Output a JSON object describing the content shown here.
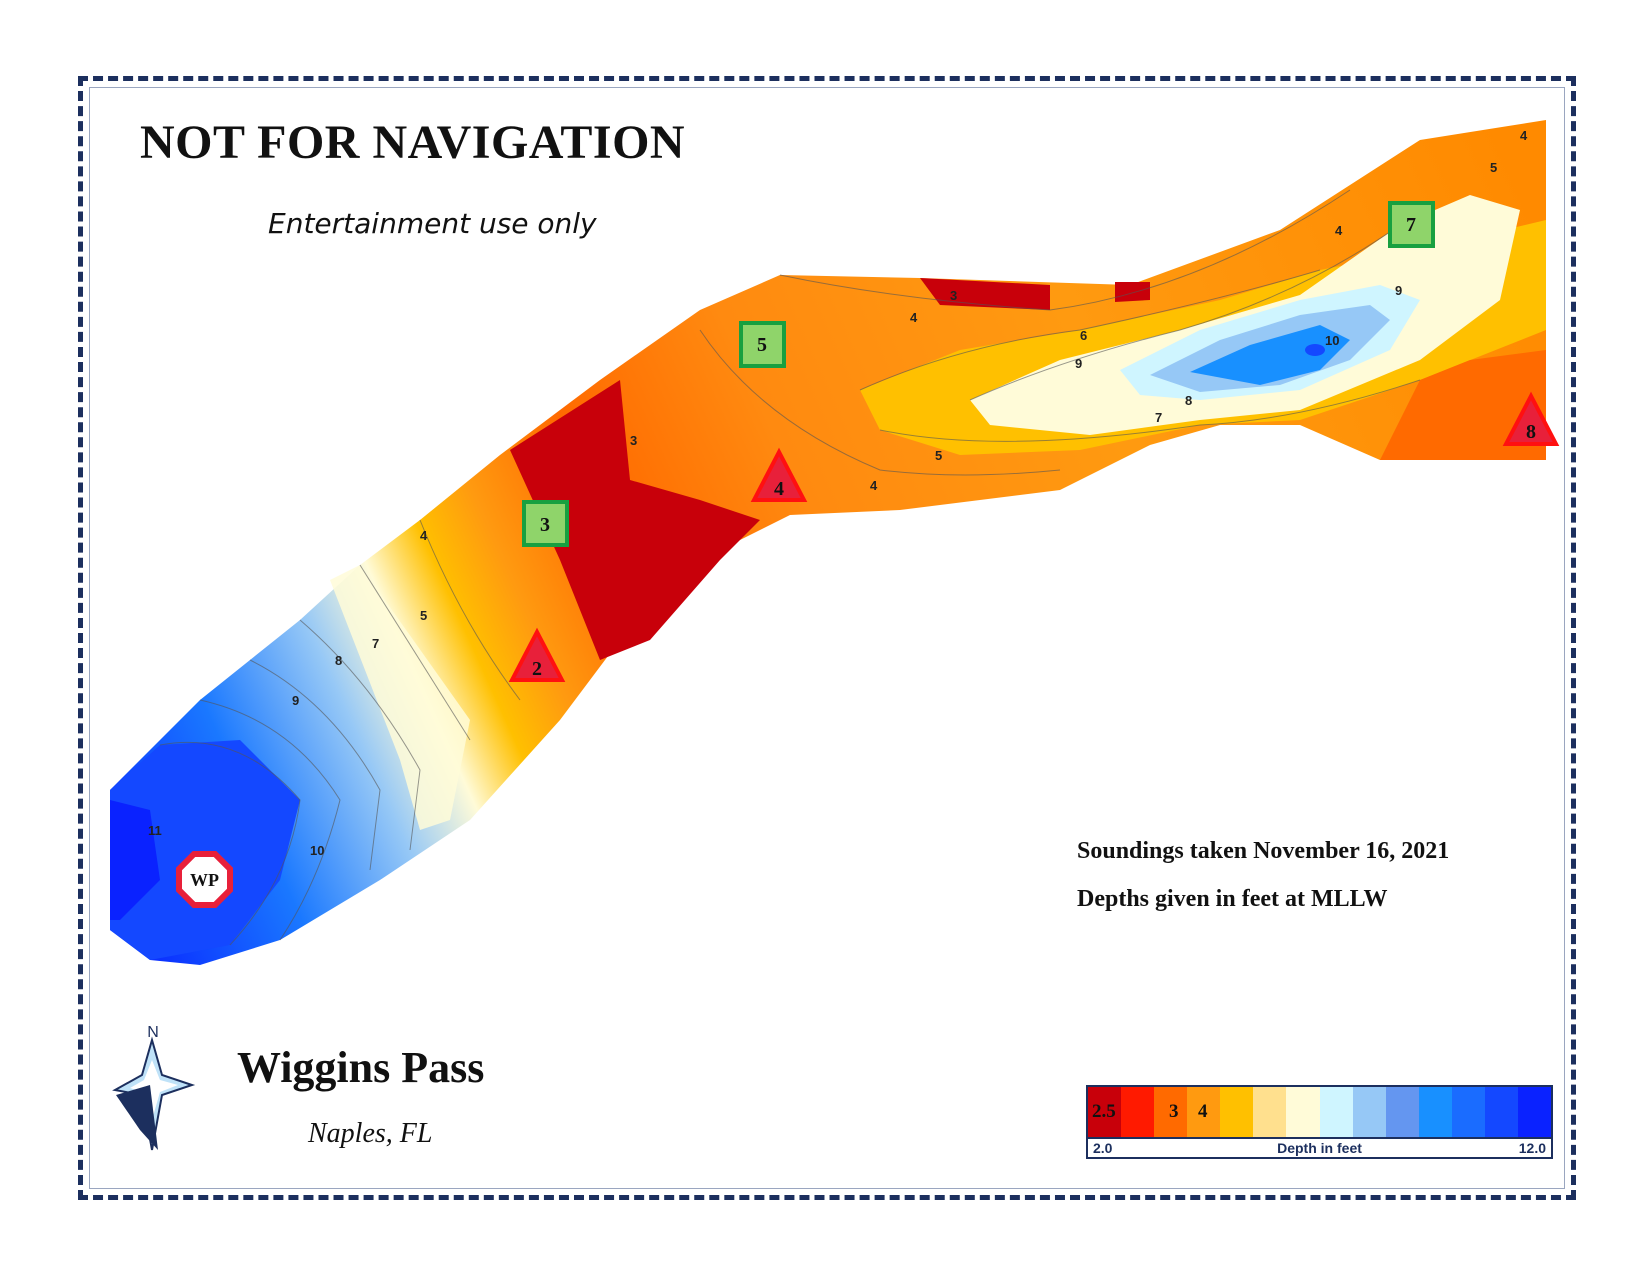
{
  "header": {
    "title": "NOT FOR NAVIGATION",
    "subtitle": "Entertainment use only"
  },
  "notes": {
    "soundings": "Soundings taken November 16, 2021",
    "depths": "Depths given in feet at MLLW"
  },
  "place": {
    "name": "Wiggins Pass",
    "city": "Naples, FL"
  },
  "compass": {
    "north_label": "N",
    "icon": "compass-rose-icon"
  },
  "markers": [
    {
      "label": "2",
      "shape": "triangle",
      "color": "#e8203a"
    },
    {
      "label": "3",
      "shape": "square",
      "color": "#8fd46a"
    },
    {
      "label": "4",
      "shape": "triangle",
      "color": "#e8203a"
    },
    {
      "label": "5",
      "shape": "square",
      "color": "#8fd46a"
    },
    {
      "label": "7",
      "shape": "square",
      "color": "#8fd46a"
    },
    {
      "label": "8",
      "shape": "triangle",
      "color": "#e8203a"
    },
    {
      "label": "WP",
      "shape": "octagon",
      "color": "#e8203a"
    }
  ],
  "contour_labels": [
    "3",
    "4",
    "5",
    "6",
    "7",
    "8",
    "9",
    "10",
    "11"
  ],
  "legend": {
    "title": "Depth in feet",
    "min": "2.0",
    "max": "12.0",
    "labels": [
      "2.5",
      "3",
      "4"
    ],
    "colors": [
      "#c8000a",
      "#ff1a00",
      "#ff6a00",
      "#ff9a10",
      "#ffc000",
      "#ffe08e",
      "#fffbd8",
      "#cff5ff",
      "#96c8f6",
      "#6496f0",
      "#1890ff",
      "#1a6cff",
      "#1448ff",
      "#0a22ff"
    ]
  }
}
